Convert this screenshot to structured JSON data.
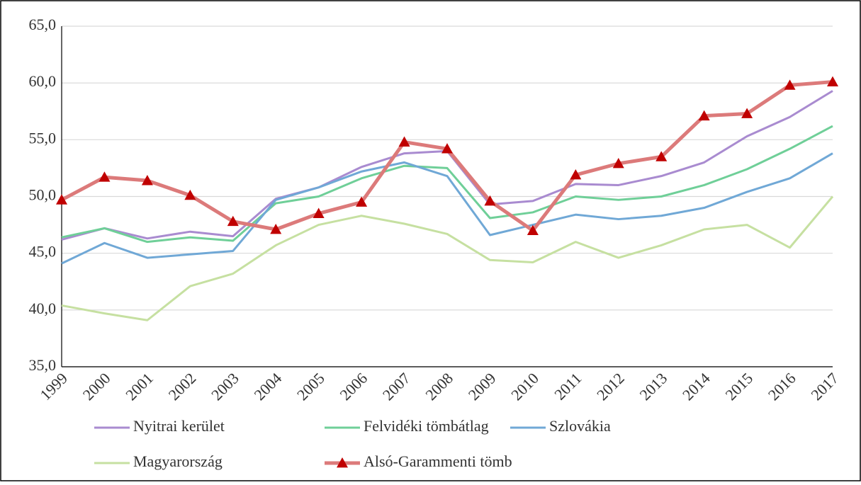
{
  "chart_data": {
    "type": "line",
    "categories": [
      "1999",
      "2000",
      "2001",
      "2002",
      "2003",
      "2004",
      "2005",
      "2006",
      "2007",
      "2008",
      "2009",
      "2010",
      "2011",
      "2012",
      "2013",
      "2014",
      "2015",
      "2016",
      "2017"
    ],
    "series": [
      {
        "name": "Nyitrai kerület",
        "color": "#a98bd0",
        "values": [
          46.2,
          47.2,
          46.3,
          46.9,
          46.5,
          49.8,
          50.8,
          52.6,
          53.8,
          54.0,
          49.3,
          49.6,
          51.1,
          51.0,
          51.8,
          53.0,
          55.3,
          57.0,
          59.3
        ]
      },
      {
        "name": "Felvidéki tömbátlag",
        "color": "#6fcf98",
        "values": [
          46.4,
          47.2,
          46.0,
          46.4,
          46.1,
          49.4,
          50.0,
          51.6,
          52.7,
          52.5,
          48.1,
          48.6,
          50.0,
          49.7,
          50.0,
          51.0,
          52.4,
          54.2,
          56.2
        ]
      },
      {
        "name": "Szlovákia",
        "color": "#70a8d6",
        "values": [
          44.1,
          45.9,
          44.6,
          44.9,
          45.2,
          49.7,
          50.8,
          52.2,
          53.0,
          51.8,
          46.6,
          47.5,
          48.4,
          48.0,
          48.3,
          49.0,
          50.4,
          51.6,
          53.8
        ]
      },
      {
        "name": "Magyarország",
        "color": "#c6e0a1",
        "values": [
          40.4,
          39.7,
          39.1,
          42.1,
          43.2,
          45.7,
          47.5,
          48.3,
          47.6,
          46.7,
          44.4,
          44.2,
          46.0,
          44.6,
          45.7,
          47.1,
          47.5,
          45.5,
          50.0
        ]
      },
      {
        "name": "Alsó-Garammenti  tömb",
        "color": "#dc7a7a",
        "marker": "triangle",
        "marker_color": "#c00000",
        "values": [
          49.7,
          51.7,
          51.4,
          50.1,
          47.8,
          47.1,
          48.5,
          49.5,
          54.8,
          54.2,
          49.6,
          47.0,
          51.9,
          52.9,
          53.5,
          57.1,
          57.3,
          59.8,
          60.1
        ]
      }
    ],
    "ylim": [
      35,
      65
    ],
    "yticks": [
      {
        "value": 35,
        "label": "35,0"
      },
      {
        "value": 40,
        "label": "40,0"
      },
      {
        "value": 45,
        "label": "45,0"
      },
      {
        "value": 50,
        "label": "50,0"
      },
      {
        "value": 55,
        "label": "55,0"
      },
      {
        "value": 60,
        "label": "60,0"
      },
      {
        "value": 65,
        "label": "65,0"
      }
    ],
    "grid": true,
    "legend": "bottom"
  }
}
